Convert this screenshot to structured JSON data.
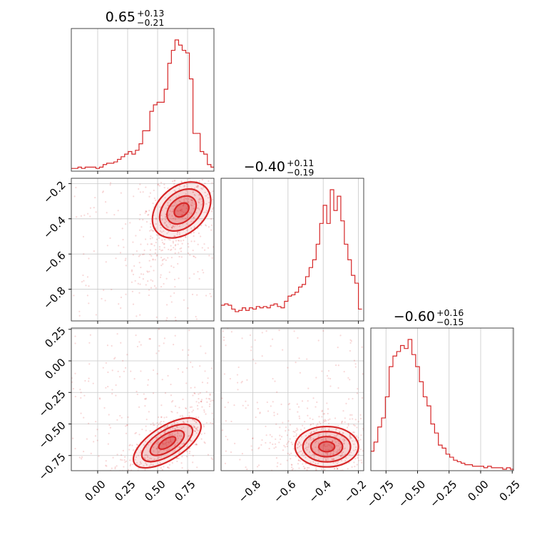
{
  "chart_data": {
    "type": "corner",
    "color": "#d62728",
    "grid": true,
    "parameters": [
      {
        "median": "0.65",
        "plus": "+0.13",
        "minus": "−0.21",
        "range": [
          -0.22,
          0.97
        ],
        "ticks": [
          0.0,
          0.25,
          0.5,
          0.75
        ],
        "tick_labels": [
          "0.00",
          "0.25",
          "0.50",
          "0.75"
        ]
      },
      {
        "median": "−0.40",
        "plus": "+0.11",
        "minus": "−0.19",
        "range": [
          -0.98,
          -0.17
        ],
        "ticks": [
          -0.8,
          -0.6,
          -0.4,
          -0.2
        ],
        "tick_labels": [
          "−0.8",
          "−0.6",
          "−0.4",
          "−0.2"
        ]
      },
      {
        "median": "−0.60",
        "plus": "+0.16",
        "minus": "−0.15",
        "range": [
          -0.87,
          0.26
        ],
        "ticks": [
          -0.75,
          -0.5,
          -0.25,
          0.0,
          0.25
        ],
        "tick_labels": [
          "−0.75",
          "−0.50",
          "−0.25",
          "0.00",
          "0.25"
        ]
      }
    ],
    "histograms": [
      {
        "param": 0,
        "x": [
          -0.21,
          -0.18,
          -0.15,
          -0.12,
          -0.09,
          -0.06,
          -0.03,
          0.0,
          0.03,
          0.06,
          0.09,
          0.12,
          0.15,
          0.18,
          0.21,
          0.24,
          0.27,
          0.3,
          0.33,
          0.36,
          0.39,
          0.42,
          0.45,
          0.48,
          0.51,
          0.54,
          0.57,
          0.6,
          0.63,
          0.66,
          0.69,
          0.72,
          0.75,
          0.78,
          0.81,
          0.84,
          0.87,
          0.9,
          0.93,
          0.96
        ],
        "counts": [
          1,
          1,
          2,
          1,
          2,
          2,
          2,
          1,
          2,
          4,
          5,
          5,
          6,
          8,
          10,
          12,
          14,
          12,
          15,
          20,
          30,
          30,
          45,
          50,
          52,
          52,
          62,
          82,
          92,
          100,
          96,
          92,
          90,
          70,
          28,
          28,
          14,
          12,
          4,
          2
        ]
      },
      {
        "param": 1,
        "x": [
          -0.97,
          -0.95,
          -0.93,
          -0.91,
          -0.89,
          -0.87,
          -0.85,
          -0.83,
          -0.81,
          -0.79,
          -0.77,
          -0.75,
          -0.73,
          -0.71,
          -0.69,
          -0.67,
          -0.65,
          -0.63,
          -0.61,
          -0.59,
          -0.57,
          -0.55,
          -0.53,
          -0.51,
          -0.49,
          -0.47,
          -0.45,
          -0.43,
          -0.41,
          -0.39,
          -0.37,
          -0.35,
          -0.33,
          -0.31,
          -0.29,
          -0.27,
          -0.25,
          -0.23,
          -0.21,
          -0.19
        ],
        "counts": [
          11,
          12,
          11,
          8,
          6,
          7,
          9,
          7,
          9,
          8,
          10,
          9,
          10,
          9,
          11,
          12,
          10,
          9,
          14,
          18,
          19,
          21,
          25,
          27,
          33,
          40,
          46,
          58,
          74,
          88,
          74,
          100,
          84,
          95,
          76,
          58,
          46,
          34,
          28,
          8
        ]
      },
      {
        "param": 2,
        "x": [
          -0.86,
          -0.83,
          -0.8,
          -0.77,
          -0.74,
          -0.71,
          -0.68,
          -0.65,
          -0.62,
          -0.59,
          -0.56,
          -0.53,
          -0.5,
          -0.47,
          -0.44,
          -0.41,
          -0.38,
          -0.35,
          -0.32,
          -0.29,
          -0.26,
          -0.23,
          -0.2,
          -0.17,
          -0.14,
          -0.11,
          -0.08,
          -0.05,
          -0.02,
          0.01,
          0.04,
          0.07,
          0.1,
          0.13,
          0.16,
          0.19,
          0.22,
          0.25
        ],
        "counts": [
          12,
          18,
          28,
          34,
          48,
          68,
          75,
          78,
          82,
          80,
          86,
          76,
          68,
          58,
          48,
          42,
          30,
          24,
          16,
          14,
          10,
          8,
          6,
          5,
          4,
          3,
          3,
          2,
          2,
          2,
          1,
          2,
          1,
          1,
          1,
          0,
          1,
          0
        ]
      }
    ],
    "joint_modes": [
      {
        "x_param": 0,
        "y_param": 1,
        "center": [
          0.7,
          -0.35
        ],
        "sigma": [
          0.12,
          0.12
        ],
        "correlation": 0.6
      },
      {
        "x_param": 0,
        "y_param": 2,
        "center": [
          0.58,
          -0.65
        ],
        "sigma": [
          0.14,
          0.12
        ],
        "correlation": 0.7
      },
      {
        "x_param": 1,
        "y_param": 2,
        "center": [
          -0.38,
          -0.68
        ],
        "sigma": [
          0.09,
          0.08
        ],
        "correlation": 0.0
      }
    ]
  }
}
